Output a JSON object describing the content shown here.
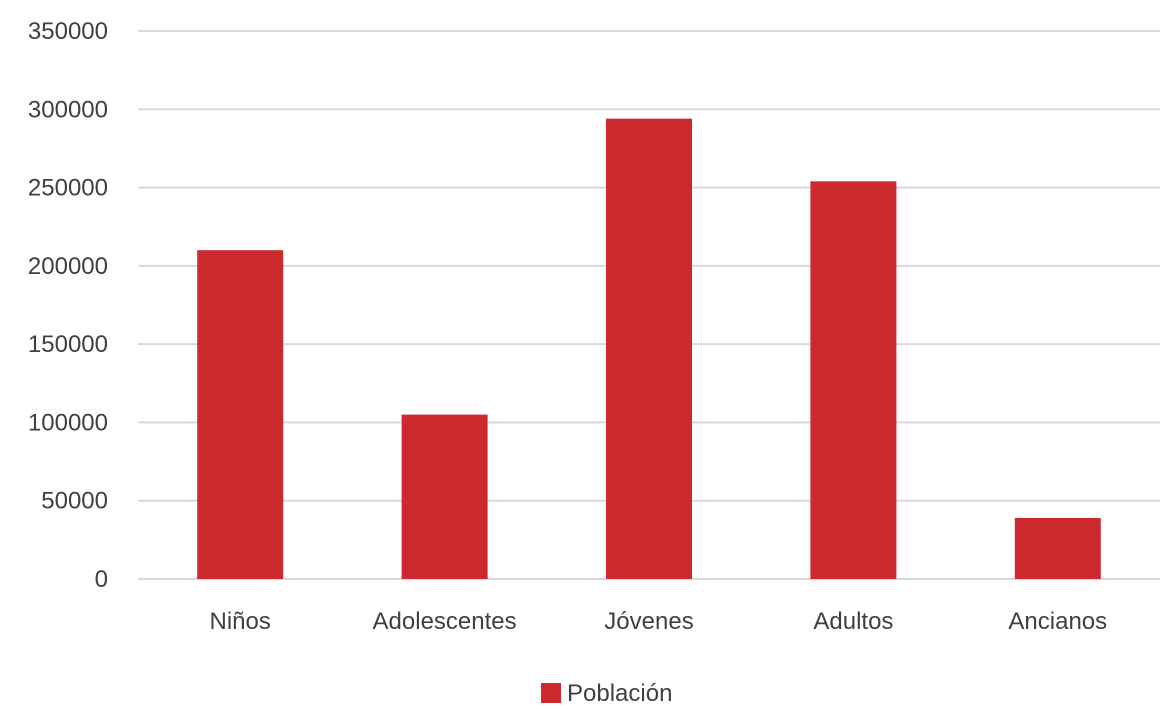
{
  "chart_data": {
    "type": "bar",
    "categories": [
      "Niños",
      "Adolescentes",
      "Jóvenes",
      "Adultos",
      "Ancianos"
    ],
    "series": [
      {
        "name": "Población",
        "values": [
          210000,
          105000,
          294000,
          254000,
          39000
        ],
        "color": "#cc2a2e"
      }
    ],
    "ylim": [
      0,
      350000
    ],
    "yticks": [
      0,
      50000,
      100000,
      150000,
      200000,
      250000,
      300000,
      350000
    ],
    "ytick_labels": [
      "0",
      "50000",
      "100000",
      "150000",
      "200000",
      "250000",
      "300000",
      "350000"
    ],
    "grid": true,
    "legend_position": "bottom",
    "colors": {
      "grid": "#d9d9d9",
      "text": "#404040",
      "bar": "#cc2a2e"
    }
  }
}
